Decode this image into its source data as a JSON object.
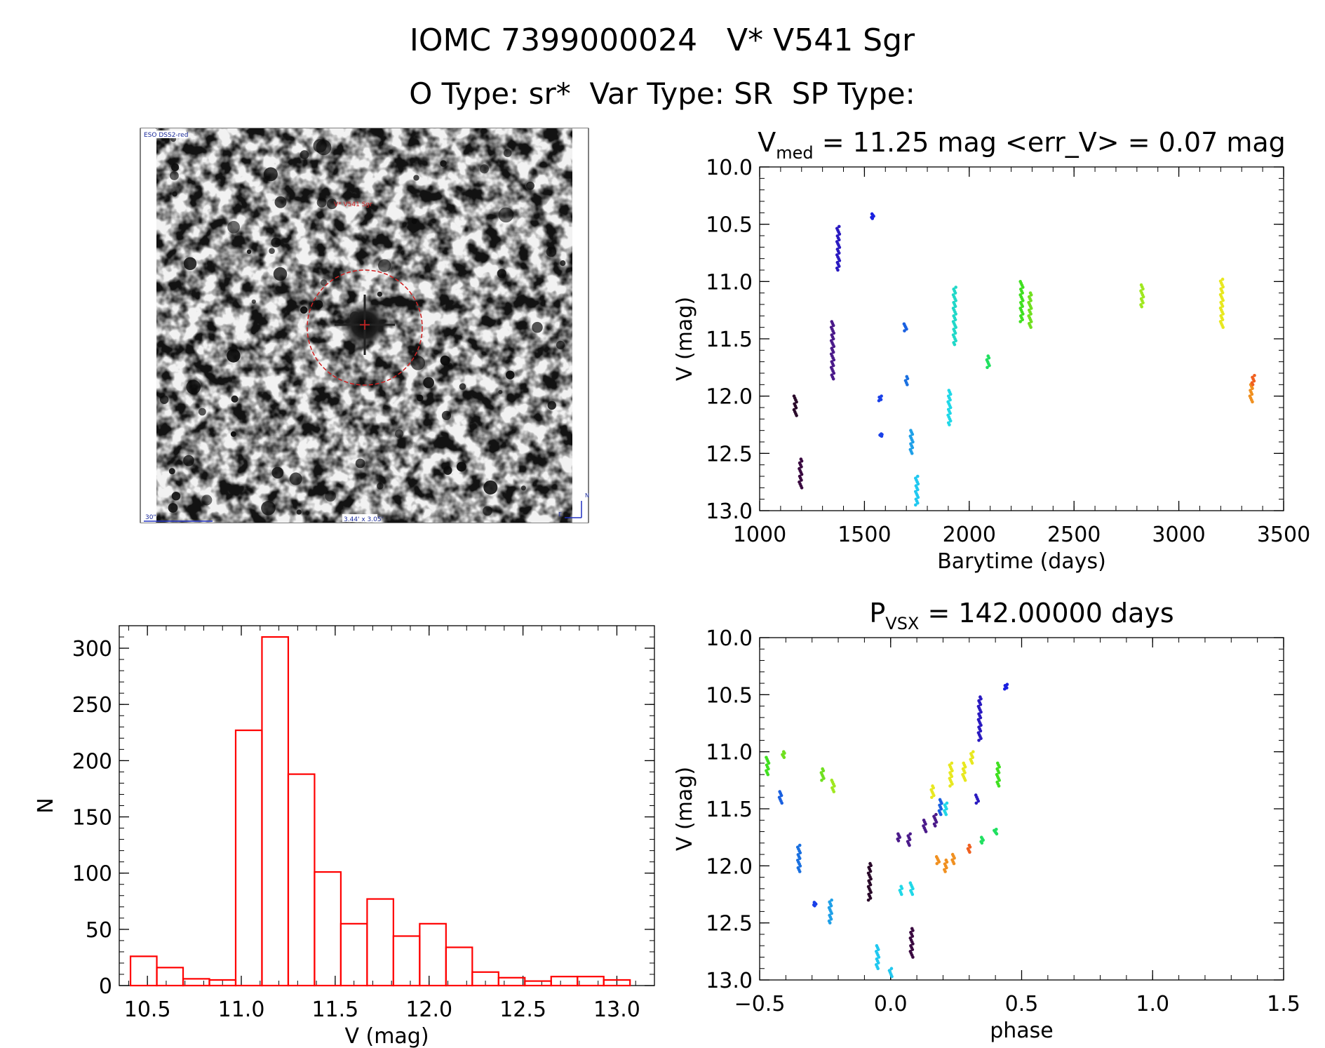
{
  "header": {
    "title": "IOMC 7399000024   V* V541 Sgr",
    "subtitle": "O Type: sr*  Var Type: SR  SP Type:"
  },
  "finder": {
    "survey_label": "ESO DSS2-red",
    "target_label": "V* V541 Sgr",
    "scale_label": "30\"",
    "fov_label": "3.44' x 3.05'",
    "north_label": "N",
    "east_label": "E"
  },
  "chart_data": [
    {
      "id": "lightcurve",
      "type": "scatter",
      "title": "V_med = 11.25 mag <err_V> = 0.07 mag",
      "title_parts": {
        "pre": "V",
        "sub": "med",
        "post": " = 11.25 mag <err_V> = 0.07 mag"
      },
      "xlabel": "Barytime (days)",
      "ylabel": "V (mag)",
      "xlim": [
        1000,
        3500
      ],
      "ylim": [
        13.0,
        10.0
      ],
      "y_inverted": true,
      "xticks": [
        1000,
        1500,
        2000,
        2500,
        3000,
        3500
      ],
      "xtick_labels": [
        "1000",
        "1500",
        "2000",
        "2500",
        "3000",
        "3500"
      ],
      "yticks": [
        10.0,
        10.5,
        11.0,
        11.5,
        12.0,
        12.5,
        13.0
      ],
      "ytick_labels": [
        "10.0",
        "10.5",
        "11.0",
        "11.5",
        "12.0",
        "12.5",
        "13.0"
      ],
      "groups": [
        {
          "x": 1170,
          "y": [
            12.0,
            12.17
          ],
          "color": "#2a0a2a"
        },
        {
          "x": 1195,
          "y": [
            12.55,
            12.8
          ],
          "color": "#3a0a40"
        },
        {
          "x": 1348,
          "y": [
            11.35,
            11.85
          ],
          "color": "#4b1a8a"
        },
        {
          "x": 1375,
          "y": [
            10.52,
            10.9
          ],
          "color": "#2a1ac0"
        },
        {
          "x": 1538,
          "y": [
            10.41,
            10.45
          ],
          "color": "#1a20e0"
        },
        {
          "x": 1575,
          "y": [
            12.0,
            12.04
          ],
          "color": "#1a40e8"
        },
        {
          "x": 1580,
          "y": [
            12.33,
            12.35
          ],
          "color": "#1a40e8"
        },
        {
          "x": 1695,
          "y": [
            11.37,
            11.43
          ],
          "color": "#1a60e0"
        },
        {
          "x": 1700,
          "y": [
            11.83,
            11.9
          ],
          "color": "#1a70e0"
        },
        {
          "x": 1725,
          "y": [
            12.3,
            12.5
          ],
          "color": "#20a0e8"
        },
        {
          "x": 1750,
          "y": [
            12.7,
            12.95
          ],
          "color": "#20c8f0"
        },
        {
          "x": 1905,
          "y": [
            11.95,
            12.25
          ],
          "color": "#20d8e8"
        },
        {
          "x": 1930,
          "y": [
            11.05,
            11.55
          ],
          "color": "#20d8c8"
        },
        {
          "x": 2090,
          "y": [
            11.65,
            11.75
          ],
          "color": "#20e060"
        },
        {
          "x": 2250,
          "y": [
            11.0,
            11.35
          ],
          "color": "#40e020"
        },
        {
          "x": 2290,
          "y": [
            11.1,
            11.4
          ],
          "color": "#70e020"
        },
        {
          "x": 2825,
          "y": [
            11.03,
            11.22
          ],
          "color": "#a0e820"
        },
        {
          "x": 3205,
          "y": [
            10.98,
            11.4
          ],
          "color": "#e8e820"
        },
        {
          "x": 3345,
          "y": [
            11.9,
            12.05
          ],
          "color": "#f09020"
        },
        {
          "x": 3355,
          "y": [
            11.82,
            11.9
          ],
          "color": "#f06020"
        }
      ]
    },
    {
      "id": "phased",
      "type": "scatter",
      "title": "P_vsx = 142.00000 days",
      "title_parts": {
        "pre": "P",
        "sub": "VSX",
        "post": " = 142.00000 days"
      },
      "xlabel": "phase",
      "ylabel": "V (mag)",
      "xlim": [
        -0.5,
        1.5
      ],
      "ylim": [
        13.0,
        10.0
      ],
      "y_inverted": true,
      "xticks": [
        -0.5,
        0.0,
        0.5,
        1.0,
        1.5
      ],
      "xtick_labels": [
        "−0.5",
        "0.0",
        "0.5",
        "1.0",
        "1.5"
      ],
      "yticks": [
        10.0,
        10.5,
        11.0,
        11.5,
        12.0,
        12.5,
        13.0
      ],
      "ytick_labels": [
        "10.0",
        "10.5",
        "11.0",
        "11.5",
        "12.0",
        "12.5",
        "13.0"
      ],
      "groups": [
        {
          "x": -0.47,
          "y": [
            11.05,
            11.2
          ],
          "color": "#40e020"
        },
        {
          "x": -0.41,
          "y": [
            11.0,
            11.05
          ],
          "color": "#70e020"
        },
        {
          "x": -0.42,
          "y": [
            11.35,
            11.45
          ],
          "color": "#1a60e0"
        },
        {
          "x": -0.35,
          "y": [
            11.82,
            12.05
          ],
          "color": "#1a70e0"
        },
        {
          "x": -0.29,
          "y": [
            12.32,
            12.35
          ],
          "color": "#1a40e8"
        },
        {
          "x": -0.23,
          "y": [
            12.3,
            12.5
          ],
          "color": "#20a0e8"
        },
        {
          "x": -0.26,
          "y": [
            11.15,
            11.25
          ],
          "color": "#70e020"
        },
        {
          "x": -0.22,
          "y": [
            11.25,
            11.35
          ],
          "color": "#a0e820"
        },
        {
          "x": -0.08,
          "y": [
            11.98,
            12.3
          ],
          "color": "#2a0a2a"
        },
        {
          "x": -0.05,
          "y": [
            12.7,
            12.9
          ],
          "color": "#20c8f0"
        },
        {
          "x": 0.0,
          "y": [
            12.9,
            12.97
          ],
          "color": "#20c8f0"
        },
        {
          "x": 0.03,
          "y": [
            11.72,
            11.78
          ],
          "color": "#4b1a8a"
        },
        {
          "x": 0.07,
          "y": [
            11.72,
            11.82
          ],
          "color": "#4b1a8a"
        },
        {
          "x": 0.04,
          "y": [
            12.18,
            12.25
          ],
          "color": "#20d8e8"
        },
        {
          "x": 0.08,
          "y": [
            12.15,
            12.25
          ],
          "color": "#20d8e8"
        },
        {
          "x": 0.08,
          "y": [
            12.55,
            12.8
          ],
          "color": "#3a0a40"
        },
        {
          "x": 0.13,
          "y": [
            11.6,
            11.7
          ],
          "color": "#4b1a8a"
        },
        {
          "x": 0.17,
          "y": [
            11.55,
            11.65
          ],
          "color": "#4b1a8a"
        },
        {
          "x": 0.19,
          "y": [
            11.42,
            11.55
          ],
          "color": "#1a60e0"
        },
        {
          "x": 0.21,
          "y": [
            11.45,
            11.55
          ],
          "color": "#20d8e8"
        },
        {
          "x": 0.16,
          "y": [
            11.3,
            11.4
          ],
          "color": "#e8e820"
        },
        {
          "x": 0.18,
          "y": [
            11.92,
            11.98
          ],
          "color": "#f09020"
        },
        {
          "x": 0.21,
          "y": [
            11.95,
            12.05
          ],
          "color": "#f09020"
        },
        {
          "x": 0.24,
          "y": [
            11.9,
            11.98
          ],
          "color": "#f09020"
        },
        {
          "x": 0.23,
          "y": [
            11.1,
            11.3
          ],
          "color": "#e8e820"
        },
        {
          "x": 0.28,
          "y": [
            11.1,
            11.25
          ],
          "color": "#e8e820"
        },
        {
          "x": 0.31,
          "y": [
            11.0,
            11.1
          ],
          "color": "#e8e820"
        },
        {
          "x": 0.3,
          "y": [
            11.82,
            11.88
          ],
          "color": "#f06020"
        },
        {
          "x": 0.33,
          "y": [
            11.38,
            11.45
          ],
          "color": "#2a1ac0"
        },
        {
          "x": 0.34,
          "y": [
            10.52,
            10.9
          ],
          "color": "#2a1ac0"
        },
        {
          "x": 0.35,
          "y": [
            11.75,
            11.8
          ],
          "color": "#20e060"
        },
        {
          "x": 0.4,
          "y": [
            11.68,
            11.72
          ],
          "color": "#20e060"
        },
        {
          "x": 0.41,
          "y": [
            11.1,
            11.3
          ],
          "color": "#40e020"
        },
        {
          "x": 0.44,
          "y": [
            10.41,
            10.45
          ],
          "color": "#1a20e0"
        }
      ]
    },
    {
      "id": "histogram",
      "type": "bar",
      "title": "",
      "xlabel": "V (mag)",
      "ylabel": "N",
      "xlim": [
        10.35,
        13.2
      ],
      "ylim": [
        0,
        320
      ],
      "xticks": [
        10.5,
        11.0,
        11.5,
        12.0,
        12.5,
        13.0
      ],
      "xtick_labels": [
        "10.5",
        "11.0",
        "11.5",
        "12.0",
        "12.5",
        "13.0"
      ],
      "yticks": [
        0,
        50,
        100,
        150,
        200,
        250,
        300
      ],
      "ytick_labels": [
        "0",
        "50",
        "100",
        "150",
        "200",
        "250",
        "300"
      ],
      "bar_color": "#ff0000",
      "bin_width": 0.14,
      "bin_starts": [
        10.41,
        10.55,
        10.69,
        10.83,
        10.97,
        11.11,
        11.25,
        11.39,
        11.53,
        11.67,
        11.81,
        11.95,
        12.09,
        12.23,
        12.37,
        12.51,
        12.65,
        12.79,
        12.93
      ],
      "values": [
        26,
        16,
        6,
        5,
        227,
        310,
        188,
        101,
        55,
        77,
        44,
        55,
        34,
        12,
        7,
        4,
        8,
        8,
        5
      ]
    }
  ],
  "colors": {
    "red_circle": "#d02020",
    "scale_bar": "#2030c0"
  }
}
